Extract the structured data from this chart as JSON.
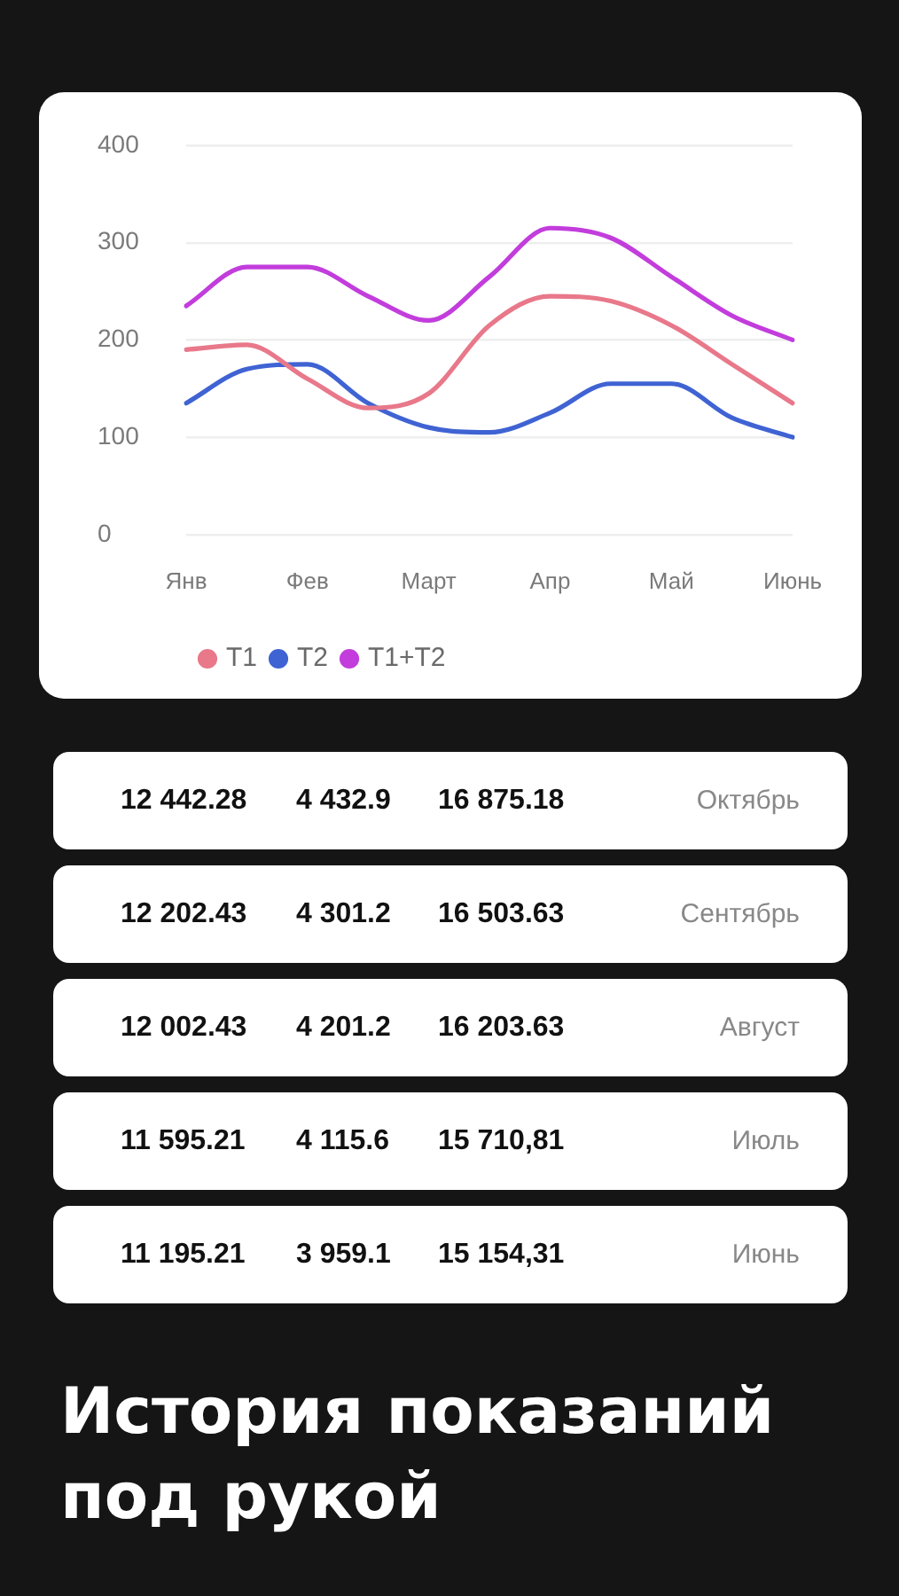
{
  "chart_data": [
    {
      "type": "line",
      "categories": [
        "Янв",
        null,
        "Фев",
        null,
        "Март",
        null,
        "Апр",
        null,
        "Май",
        null,
        "Июнь"
      ],
      "series": [
        {
          "name": "T1",
          "color": "#e8788a",
          "values": [
            190,
            195,
            160,
            130,
            145,
            215,
            245,
            240,
            215,
            175,
            135
          ]
        },
        {
          "name": "T2",
          "color": "#3f63d3",
          "values": [
            135,
            170,
            175,
            135,
            110,
            105,
            125,
            155,
            155,
            120,
            100
          ]
        },
        {
          "name": "T1+T2",
          "color": "#c23ddc",
          "values": [
            235,
            275,
            275,
            245,
            220,
            265,
            315,
            305,
            265,
            225,
            200
          ]
        }
      ],
      "ylim": [
        0,
        400
      ],
      "yticks": [
        0,
        100,
        200,
        300,
        400
      ],
      "grid": "y",
      "legend": "bottom left",
      "marker": "none",
      "line_style": "solid"
    },
    {
      "type": "other",
      "title": "История показаний под рукой",
      "annotations": [
        "12 442.28",
        "4 432.9",
        "16 875.18",
        "Октябрь",
        "12 202.43",
        "4 301.2",
        "16 503.63",
        "Сентябрь",
        "12 002.43",
        "4 201.2",
        "16 203.63",
        "Август",
        "11 595.21",
        "4 115.6",
        "15 710,81",
        "Июль",
        "11 195.21",
        "3 959.1",
        "15 154,31",
        "Июнь"
      ]
    }
  ]
}
